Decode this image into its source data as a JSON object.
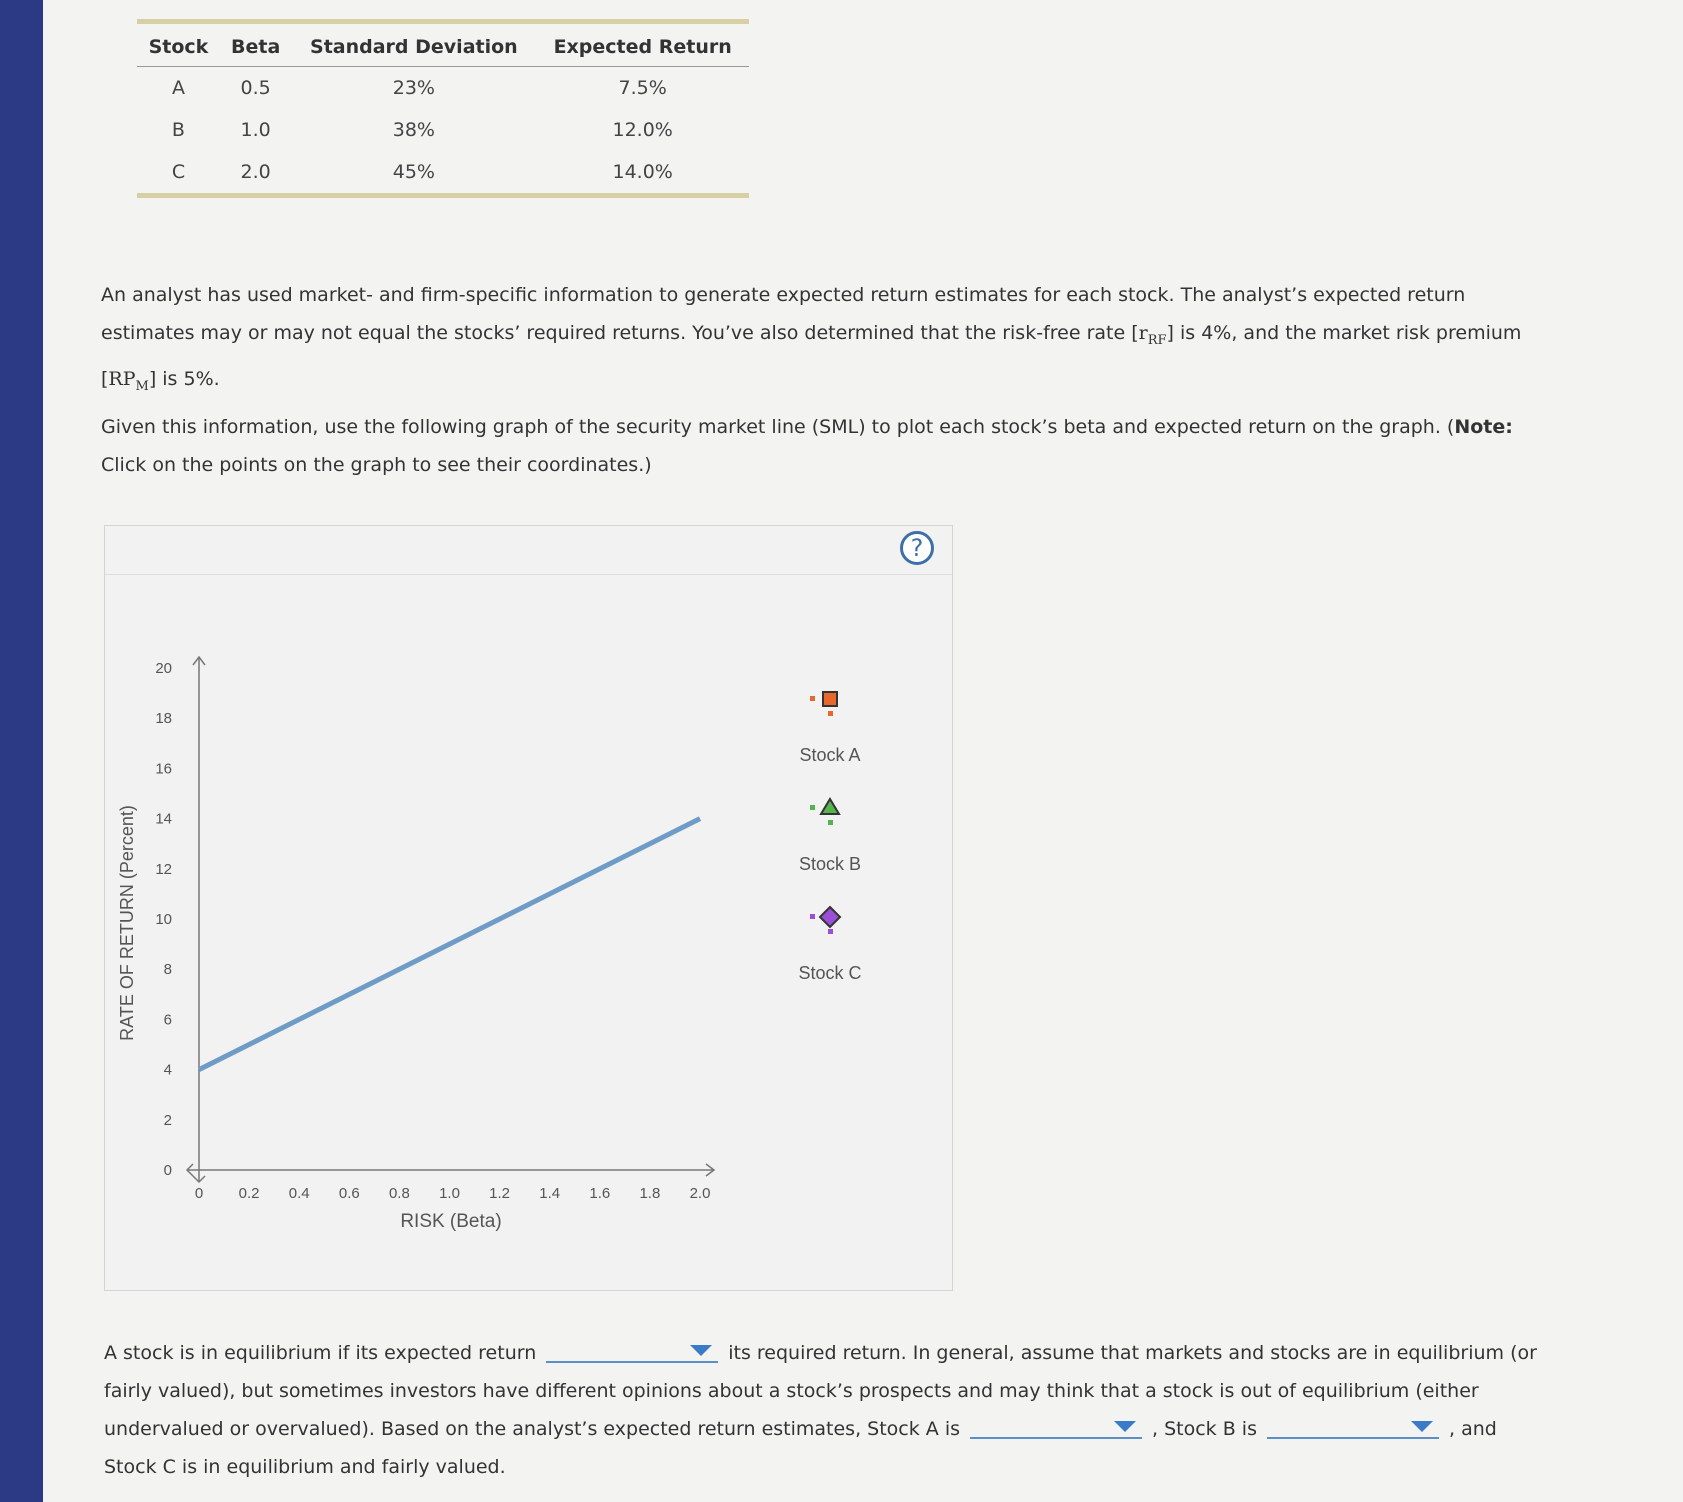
{
  "table": {
    "headers": [
      "Stock",
      "Beta",
      "Standard Deviation",
      "Expected Return"
    ],
    "rows": [
      [
        "A",
        "0.5",
        "23%",
        "7.5%"
      ],
      [
        "B",
        "1.0",
        "38%",
        "12.0%"
      ],
      [
        "C",
        "2.0",
        "45%",
        "14.0%"
      ]
    ]
  },
  "paragraph_1": [
    "An analyst has used market- and firm-specific information to generate expected return estimates for each stock. The analyst’s expected return estimates may or may not equal the stocks’ required returns. You’ve also determined that the risk-free rate [",
    "r",
    "RF",
    "] is 4%, and the market risk premium [",
    "RP",
    "M",
    "] is 5%."
  ],
  "paragraph_2": [
    "Given this information, use the following graph of the security market line (SML) to plot each stock’s beta and expected return on the graph. (",
    "Note:",
    " Click on the points on the graph to see their coordinates.)"
  ],
  "help_icon": "?",
  "chart_data": {
    "type": "line",
    "x_label": "RISK (Beta)",
    "y_label": "RATE OF RETURN (Percent)",
    "xlim": [
      0,
      2
    ],
    "ylim": [
      0,
      20
    ],
    "xticks": [
      0,
      0.2,
      0.4,
      0.6,
      0.8,
      {
        "value": 1,
        "label": "1.0"
      },
      1.2,
      1.4,
      1.6,
      1.8,
      {
        "value": 2,
        "label": "2.0"
      }
    ],
    "yticks": [
      0,
      2,
      4,
      6,
      8,
      10,
      12,
      14,
      16,
      18,
      20
    ],
    "x": [
      0,
      2
    ],
    "series": [
      {
        "color": "#6f9cc6",
        "values": [
          4,
          14
        ]
      }
    ],
    "tools": [
      {
        "label": "Stock A",
        "shape": "square",
        "color": "#e8672c"
      },
      {
        "label": "Stock B",
        "shape": "triangle",
        "color": "#55b54d"
      },
      {
        "label": "Stock C",
        "shape": "diamond",
        "color": "#9a4fd6"
      }
    ]
  },
  "question": [
    "A stock is in equilibrium if its expected return",
    "its required return. In general, assume that markets and stocks are in equilibrium (or fairly valued), but sometimes investors have different opinions about a stock’s prospects and may think that a stock is out of equilibrium (either undervalued or overvalued). Based on the analyst’s expected return estimates, Stock A is",
    ", Stock B is",
    ", and Stock C is in equilibrium and fairly valued."
  ]
}
